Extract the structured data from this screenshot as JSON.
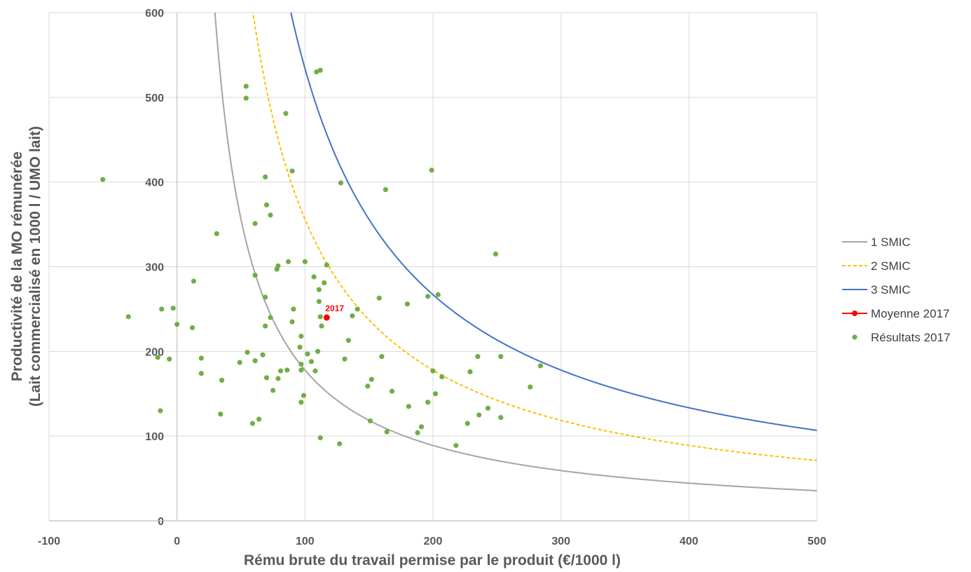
{
  "chart_data": {
    "type": "scatter",
    "title": "",
    "xlabel": "Rému brute du travail permise par le produit (€/1000 l)",
    "ylabel_line1": "Productivité de la MO rémunérée",
    "ylabel_line2": "(Lait commercialisé en 1000 l / UMO lait)",
    "xlim": [
      -100,
      500
    ],
    "ylim": [
      0,
      600
    ],
    "xticks": [
      -100,
      0,
      100,
      200,
      300,
      400,
      500
    ],
    "yticks": [
      0,
      100,
      200,
      300,
      400,
      500,
      600
    ],
    "grid": true,
    "legend_position": "right",
    "curves": [
      {
        "name": "1 SMIC",
        "k": 17800,
        "color": "#a5a5a5",
        "dash": "none"
      },
      {
        "name": "2 SMIC",
        "k": 35600,
        "color": "#ffc000",
        "dash": "5,3"
      },
      {
        "name": "3 SMIC",
        "k": 53400,
        "color": "#4472c4",
        "dash": "none"
      }
    ],
    "mean": {
      "name": "Moyenne 2017",
      "label": "2017",
      "x": 117,
      "y": 240,
      "color": "#ff0000"
    },
    "scatter_series": {
      "name": "Résultats 2017",
      "color": "#70ad47",
      "points": [
        [
          -58,
          403
        ],
        [
          -38,
          241
        ],
        [
          -15,
          193
        ],
        [
          -13,
          130
        ],
        [
          -12,
          250
        ],
        [
          -6,
          191
        ],
        [
          -3,
          251
        ],
        [
          0,
          232
        ],
        [
          12,
          228
        ],
        [
          13,
          283
        ],
        [
          19,
          174
        ],
        [
          19,
          192
        ],
        [
          31,
          339
        ],
        [
          34,
          126
        ],
        [
          35,
          166
        ],
        [
          49,
          187
        ],
        [
          54,
          513
        ],
        [
          54,
          499
        ],
        [
          55,
          199
        ],
        [
          59,
          115
        ],
        [
          61,
          290
        ],
        [
          61,
          351
        ],
        [
          61,
          189
        ],
        [
          64,
          120
        ],
        [
          67,
          196
        ],
        [
          69,
          406
        ],
        [
          69,
          264
        ],
        [
          69,
          230
        ],
        [
          70,
          169
        ],
        [
          70,
          373
        ],
        [
          73,
          361
        ],
        [
          73,
          240
        ],
        [
          75,
          154
        ],
        [
          78,
          297
        ],
        [
          79,
          301
        ],
        [
          79,
          168
        ],
        [
          81,
          177
        ],
        [
          85,
          481
        ],
        [
          86,
          178
        ],
        [
          87,
          306
        ],
        [
          90,
          413
        ],
        [
          90,
          235
        ],
        [
          91,
          250
        ],
        [
          96,
          205
        ],
        [
          97,
          218
        ],
        [
          97,
          178
        ],
        [
          97,
          185
        ],
        [
          97,
          140
        ],
        [
          99,
          148
        ],
        [
          100,
          306
        ],
        [
          102,
          197
        ],
        [
          105,
          188
        ],
        [
          107,
          288
        ],
        [
          108,
          177
        ],
        [
          109,
          530
        ],
        [
          110,
          200
        ],
        [
          111,
          259
        ],
        [
          111,
          273
        ],
        [
          112,
          532
        ],
        [
          112,
          98
        ],
        [
          112,
          241
        ],
        [
          113,
          230
        ],
        [
          115,
          281
        ],
        [
          117,
          302
        ],
        [
          127,
          91
        ],
        [
          128,
          399
        ],
        [
          131,
          191
        ],
        [
          134,
          213
        ],
        [
          137,
          242
        ],
        [
          141,
          250
        ],
        [
          149,
          159
        ],
        [
          151,
          118
        ],
        [
          152,
          167
        ],
        [
          158,
          263
        ],
        [
          160,
          194
        ],
        [
          163,
          391
        ],
        [
          164,
          105
        ],
        [
          168,
          153
        ],
        [
          180,
          256
        ],
        [
          181,
          135
        ],
        [
          188,
          104
        ],
        [
          191,
          111
        ],
        [
          196,
          265
        ],
        [
          196,
          140
        ],
        [
          199,
          414
        ],
        [
          200,
          177
        ],
        [
          202,
          150
        ],
        [
          204,
          267
        ],
        [
          207,
          170
        ],
        [
          218,
          89
        ],
        [
          227,
          115
        ],
        [
          229,
          176
        ],
        [
          235,
          194
        ],
        [
          236,
          125
        ],
        [
          243,
          133
        ],
        [
          249,
          315
        ],
        [
          253,
          194
        ],
        [
          253,
          122
        ],
        [
          276,
          158
        ],
        [
          284,
          183
        ]
      ]
    }
  }
}
